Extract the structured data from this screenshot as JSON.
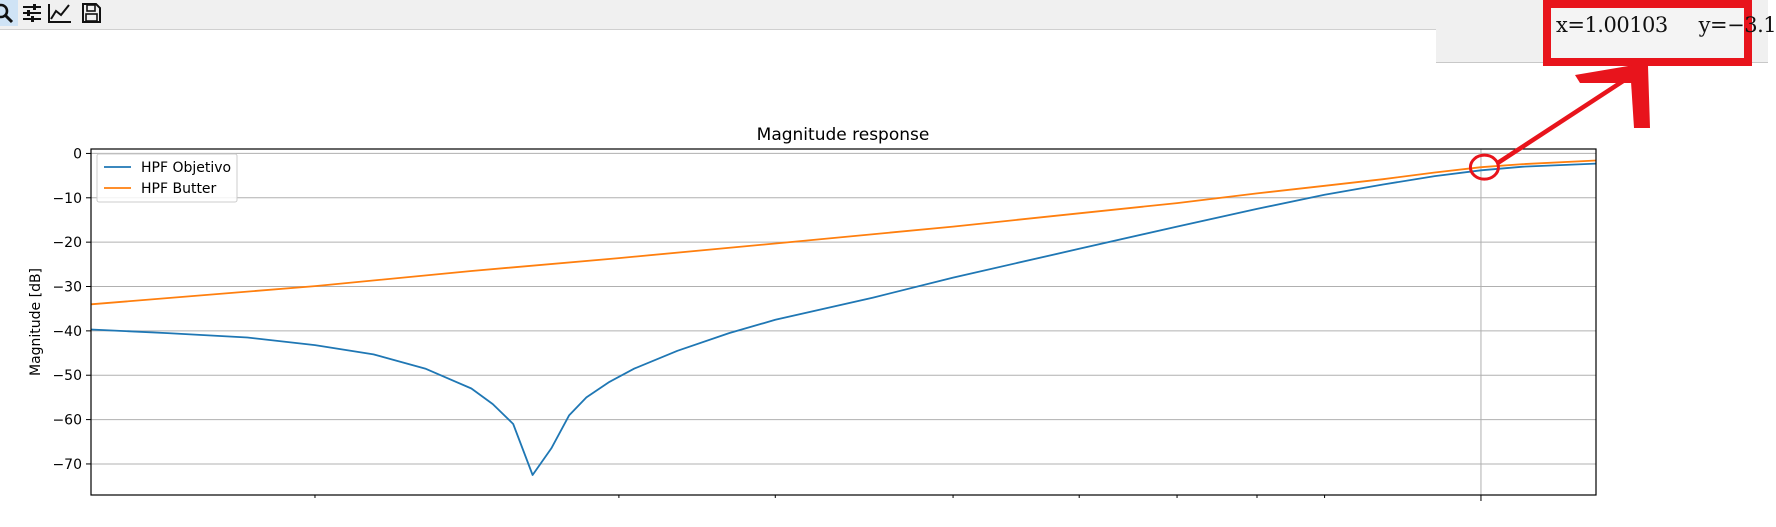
{
  "toolbar": {
    "icons": [
      "zoom-icon",
      "configure-subplots-icon",
      "edit-axis-icon",
      "save-icon"
    ],
    "active": "zoom-icon"
  },
  "coords": {
    "x_text": "x=1.00103",
    "y_text": "y=−3.1"
  },
  "annotation": {
    "color": "#e8141c"
  },
  "chart_data": {
    "type": "line",
    "title": "Magnitude response",
    "xlabel": "",
    "ylabel": "Magnitude [dB]",
    "xscale": "log",
    "xlim": [
      0.042,
      1.3
    ],
    "ylim": [
      -77,
      1
    ],
    "yticks": [
      0,
      -10,
      -20,
      -30,
      -40,
      -50,
      -60,
      -70
    ],
    "xticks_minor": [
      0.07,
      0.14,
      0.2,
      0.3,
      0.4,
      0.5,
      0.6,
      0.7
    ],
    "xticks_major": [
      1.0
    ],
    "grid": true,
    "legend_position": "upper left",
    "series": [
      {
        "name": "HPF Objetivo",
        "color": "#1f77b4",
        "x": [
          0.042,
          0.05,
          0.06,
          0.07,
          0.08,
          0.09,
          0.1,
          0.105,
          0.11,
          0.115,
          0.12,
          0.125,
          0.13,
          0.137,
          0.145,
          0.16,
          0.18,
          0.2,
          0.25,
          0.3,
          0.4,
          0.5,
          0.6,
          0.7,
          0.8,
          0.9,
          1.0,
          1.1,
          1.3
        ],
        "y": [
          -39.7,
          -40.5,
          -41.5,
          -43.2,
          -45.3,
          -48.5,
          -53.0,
          -56.5,
          -61.0,
          -72.5,
          -66.5,
          -59.0,
          -55.0,
          -51.5,
          -48.5,
          -44.5,
          -40.5,
          -37.5,
          -32.5,
          -28.0,
          -21.5,
          -16.5,
          -12.5,
          -9.3,
          -7.0,
          -5.1,
          -3.8,
          -3.0,
          -2.3
        ]
      },
      {
        "name": "HPF Butter",
        "color": "#ff7f0e",
        "x": [
          0.042,
          0.07,
          0.1,
          0.14,
          0.2,
          0.3,
          0.4,
          0.5,
          0.6,
          0.7,
          0.8,
          0.9,
          1.0,
          1.1,
          1.3
        ],
        "y": [
          -34.0,
          -29.9,
          -26.5,
          -23.6,
          -20.3,
          -16.5,
          -13.5,
          -11.2,
          -9.0,
          -7.3,
          -5.8,
          -4.3,
          -3.1,
          -2.4,
          -1.6
        ]
      }
    ]
  }
}
